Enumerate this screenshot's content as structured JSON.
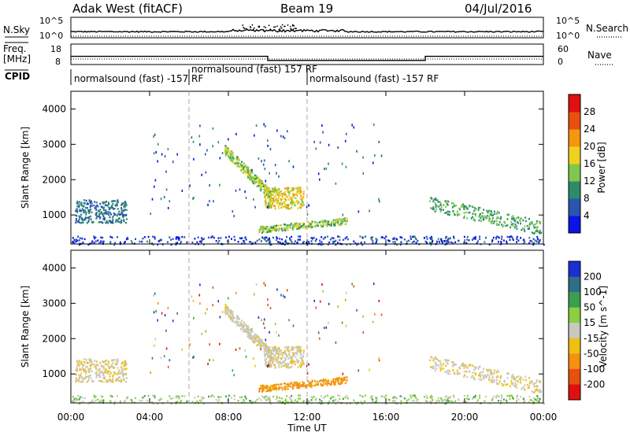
{
  "header": {
    "title": "Adak West (fitACF)",
    "beam": "Beam 19",
    "date": "04/Jul/2016"
  },
  "top_panel": {
    "nsky_label": "N.Sky",
    "nsearch_label": "N.Search",
    "log_ticks": [
      "10^5",
      "10^0"
    ],
    "freq_label_1": "Freq.",
    "freq_label_2": "[MHz]",
    "freq_ticks": [
      "18",
      "8"
    ],
    "nave_label": "Nave",
    "nave_ticks": [
      "60",
      "0"
    ],
    "cpid_label": "CPID",
    "cpid_segments": [
      {
        "text": "normalsound (fast) -157 RF"
      },
      {
        "text": "normalsound (fast) 157 RF"
      },
      {
        "text": "normalsound (fast) -157 RF"
      }
    ]
  },
  "x_axis": {
    "label": "Time UT",
    "ticks": [
      "00:00",
      "04:00",
      "08:00",
      "12:00",
      "16:00",
      "20:00",
      "00:00"
    ]
  },
  "power_panel": {
    "ylabel": "Slant Range [km]",
    "yticks": [
      "1000",
      "2000",
      "3000",
      "4000"
    ],
    "colorbar_label": "Power [dB]",
    "colorbar_ticks": [
      "4",
      "8",
      "12",
      "16",
      "20",
      "24",
      "28"
    ],
    "colors": [
      "#0a14e6",
      "#2a55b0",
      "#2e8b6a",
      "#7ec850",
      "#f0d21e",
      "#f5960f",
      "#e85010",
      "#e01010"
    ]
  },
  "velocity_panel": {
    "ylabel": "Slant Range [km]",
    "yticks": [
      "1000",
      "2000",
      "3000",
      "4000"
    ],
    "colorbar_label": "Velocity [m s^-1]",
    "colorbar_ticks": [
      "200",
      "100",
      "50",
      "15",
      "-15",
      "-50",
      "-100",
      "-200"
    ],
    "colors": [
      "#1a2fd0",
      "#2e6e8a",
      "#3aa050",
      "#8ad040",
      "#c8c8c0",
      "#f0c010",
      "#f59010",
      "#e85010",
      "#e01010"
    ]
  },
  "chart_data": {
    "type": "heatmap",
    "x_range_hours": [
      0,
      24
    ],
    "y_range_km": [
      180,
      4500
    ],
    "frequency_mhz_steps": [
      {
        "from_hour": 0,
        "to_hour": 10,
        "value": 12
      },
      {
        "from_hour": 10,
        "to_hour": 18,
        "value": 10
      },
      {
        "from_hour": 18,
        "to_hour": 24,
        "value": 12
      }
    ],
    "scatter_regions": [
      {
        "name": "morning",
        "hours": [
          0.2,
          2.8
        ],
        "range_km": [
          800,
          1450
        ],
        "power_db": 8,
        "velocity": -10
      },
      {
        "name": "arc-upper",
        "hours": [
          7.8,
          10.2
        ],
        "range_km": [
          1300,
          2900
        ],
        "power_db": 14,
        "velocity": -5
      },
      {
        "name": "arc-lower",
        "hours": [
          9.8,
          11.8
        ],
        "range_km": [
          1200,
          1800
        ],
        "power_db": 18,
        "velocity": -8
      },
      {
        "name": "mid-band",
        "hours": [
          9.5,
          14.0
        ],
        "range_km": [
          500,
          950
        ],
        "power_db": 14,
        "velocity": -40
      },
      {
        "name": "evening",
        "hours": [
          18.2,
          23.9
        ],
        "range_km": [
          500,
          1500
        ],
        "power_db": 12,
        "velocity": -10
      },
      {
        "name": "ground-band",
        "hours": [
          0,
          24
        ],
        "range_km": [
          180,
          420
        ],
        "power_db": 6,
        "velocity": 20
      }
    ]
  }
}
